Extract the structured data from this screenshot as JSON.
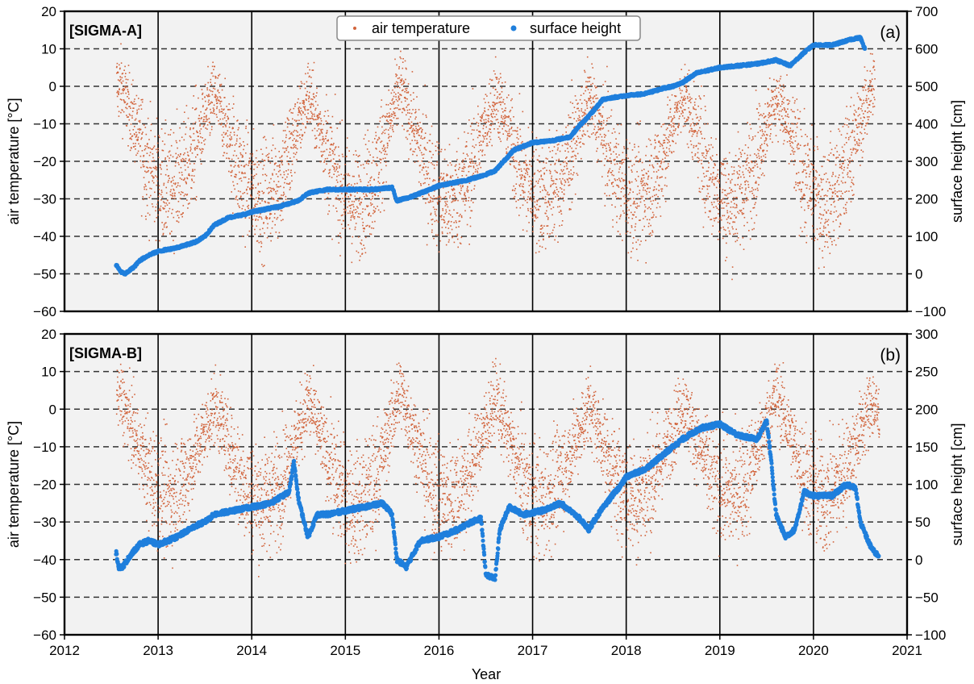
{
  "figure": {
    "xlabel": "Year",
    "legend": {
      "temp_label": "air temperature",
      "height_label": "surface height",
      "placement": "top-center"
    }
  },
  "colors": {
    "temperature": "#d2643c",
    "surface_height": "#1f7fdc",
    "plot_bg": "#f2f2f2",
    "grid_v": "#000000",
    "grid_h": "#333333"
  },
  "chart_data": [
    {
      "type": "scatter",
      "panel": "a",
      "station_label": "[SIGMA-A]",
      "panel_letter": "(a)",
      "xlabel": "Year",
      "ylabel": "air temperature [°C]",
      "y2label": "surface height [cm]",
      "xlim": [
        2012,
        2021
      ],
      "ylim": [
        -60,
        20
      ],
      "y2lim": [
        -100,
        700
      ],
      "x_ticks": [
        2012,
        2013,
        2014,
        2015,
        2016,
        2017,
        2018,
        2019,
        2020,
        2021
      ],
      "y_ticks": [
        -60,
        -50,
        -40,
        -30,
        -20,
        -10,
        0,
        10,
        20
      ],
      "y2_ticks": [
        -100,
        0,
        100,
        200,
        300,
        400,
        500,
        600,
        700
      ],
      "grid": {
        "vertical": "solid",
        "horizontal": "dashed"
      },
      "temperature_range": [
        2012.55,
        2020.65
      ],
      "series": [
        {
          "name": "surface height",
          "axis": "right",
          "x": [
            2012.55,
            2012.6,
            2012.65,
            2012.7,
            2012.75,
            2012.8,
            2012.9,
            2013.0,
            2013.2,
            2013.4,
            2013.5,
            2013.6,
            2013.75,
            2013.85,
            2013.95,
            2014.0,
            2014.3,
            2014.5,
            2014.6,
            2014.8,
            2015.0,
            2015.3,
            2015.5,
            2015.55,
            2015.7,
            2016.0,
            2016.3,
            2016.5,
            2016.6,
            2016.8,
            2017.0,
            2017.2,
            2017.4,
            2017.5,
            2017.6,
            2017.75,
            2017.85,
            2018.0,
            2018.2,
            2018.4,
            2018.5,
            2018.6,
            2018.75,
            2019.0,
            2019.2,
            2019.4,
            2019.5,
            2019.6,
            2019.75,
            2019.9,
            2020.0,
            2020.2,
            2020.4,
            2020.5,
            2020.55
          ],
          "values": [
            25,
            5,
            0,
            10,
            20,
            35,
            50,
            60,
            70,
            85,
            100,
            130,
            150,
            155,
            160,
            165,
            180,
            195,
            215,
            225,
            225,
            225,
            230,
            195,
            205,
            235,
            250,
            265,
            275,
            330,
            350,
            355,
            365,
            395,
            420,
            465,
            470,
            475,
            480,
            495,
            500,
            510,
            535,
            550,
            555,
            560,
            565,
            570,
            555,
            590,
            610,
            610,
            625,
            630,
            600
          ]
        },
        {
          "name": "air temperature",
          "axis": "left",
          "seasonal_mean": {
            "x": [
              2012.55,
              2012.6,
              2012.9,
              2013.1,
              2013.3,
              2013.6,
              2013.9,
              2014.1,
              2014.3,
              2014.6,
              2014.9,
              2015.1,
              2015.3,
              2015.58,
              2015.9,
              2016.1,
              2016.3,
              2016.6,
              2016.9,
              2017.1,
              2017.3,
              2017.6,
              2017.9,
              2018.1,
              2018.3,
              2018.6,
              2018.9,
              2019.1,
              2019.3,
              2019.6,
              2019.9,
              2020.1,
              2020.3,
              2020.62
            ],
            "values": [
              0,
              0,
              -22,
              -28,
              -22,
              -2,
              -25,
              -30,
              -25,
              -2,
              -25,
              -32,
              -25,
              0,
              -25,
              -32,
              -25,
              -2,
              -25,
              -30,
              -25,
              -3,
              -25,
              -30,
              -25,
              -2,
              -25,
              -32,
              -25,
              -2,
              -25,
              -32,
              -25,
              0
            ]
          }
        }
      ]
    },
    {
      "type": "scatter",
      "panel": "b",
      "station_label": "[SIGMA-B]",
      "panel_letter": "(b)",
      "xlabel": "Year",
      "ylabel": "air temperature [°C]",
      "y2label": "surface height [cm]",
      "xlim": [
        2012,
        2021
      ],
      "ylim": [
        -60,
        20
      ],
      "y2lim": [
        -100,
        300
      ],
      "x_ticks": [
        2012,
        2013,
        2014,
        2015,
        2016,
        2017,
        2018,
        2019,
        2020,
        2021
      ],
      "y_ticks": [
        -60,
        -50,
        -40,
        -30,
        -20,
        -10,
        0,
        10,
        20
      ],
      "y2_ticks": [
        -100,
        -50,
        0,
        50,
        100,
        150,
        200,
        250,
        300
      ],
      "grid": {
        "vertical": "solid",
        "horizontal": "dashed"
      },
      "temperature_range": [
        2012.55,
        2020.7
      ],
      "series": [
        {
          "name": "surface height",
          "axis": "right",
          "x": [
            2012.55,
            2012.58,
            2012.62,
            2012.7,
            2012.8,
            2012.9,
            2013.0,
            2013.2,
            2013.4,
            2013.5,
            2013.6,
            2013.8,
            2014.0,
            2014.2,
            2014.4,
            2014.45,
            2014.5,
            2014.6,
            2014.7,
            2014.8,
            2015.0,
            2015.2,
            2015.4,
            2015.5,
            2015.55,
            2015.65,
            2015.8,
            2016.0,
            2016.2,
            2016.35,
            2016.45,
            2016.5,
            2016.6,
            2016.65,
            2016.75,
            2016.9,
            2017.1,
            2017.3,
            2017.5,
            2017.6,
            2017.7,
            2017.85,
            2017.95,
            2018.0,
            2018.2,
            2018.4,
            2018.6,
            2018.8,
            2019.0,
            2019.2,
            2019.4,
            2019.5,
            2019.55,
            2019.6,
            2019.7,
            2019.8,
            2019.9,
            2020.0,
            2020.2,
            2020.35,
            2020.45,
            2020.5,
            2020.6,
            2020.65,
            2020.7
          ],
          "values": [
            10,
            -10,
            -10,
            5,
            20,
            25,
            20,
            30,
            45,
            50,
            60,
            65,
            70,
            75,
            90,
            130,
            80,
            30,
            60,
            60,
            65,
            70,
            75,
            60,
            0,
            -10,
            25,
            30,
            40,
            50,
            55,
            -20,
            -25,
            40,
            70,
            60,
            65,
            75,
            55,
            40,
            60,
            85,
            100,
            110,
            120,
            140,
            160,
            175,
            180,
            165,
            160,
            185,
            130,
            60,
            30,
            40,
            90,
            85,
            85,
            100,
            95,
            50,
            20,
            10,
            5
          ]
        },
        {
          "name": "air temperature",
          "axis": "left",
          "seasonal_mean": {
            "x": [
              2012.55,
              2012.6,
              2012.9,
              2013.1,
              2013.3,
              2013.6,
              2013.9,
              2014.1,
              2014.3,
              2014.6,
              2014.9,
              2015.1,
              2015.3,
              2015.58,
              2015.9,
              2016.1,
              2016.3,
              2016.6,
              2016.9,
              2017.1,
              2017.3,
              2017.6,
              2017.9,
              2018.1,
              2018.3,
              2018.6,
              2018.9,
              2019.1,
              2019.3,
              2019.6,
              2019.9,
              2020.1,
              2020.3,
              2020.62,
              2020.7
            ],
            "values": [
              4,
              3,
              -18,
              -24,
              -18,
              1,
              -20,
              -25,
              -20,
              2,
              -20,
              -26,
              -20,
              5,
              -20,
              -25,
              -18,
              3,
              -20,
              -25,
              -18,
              1,
              -20,
              -24,
              -18,
              1,
              -18,
              -24,
              -18,
              4,
              -18,
              -25,
              -18,
              2,
              -3
            ]
          }
        }
      ]
    }
  ]
}
